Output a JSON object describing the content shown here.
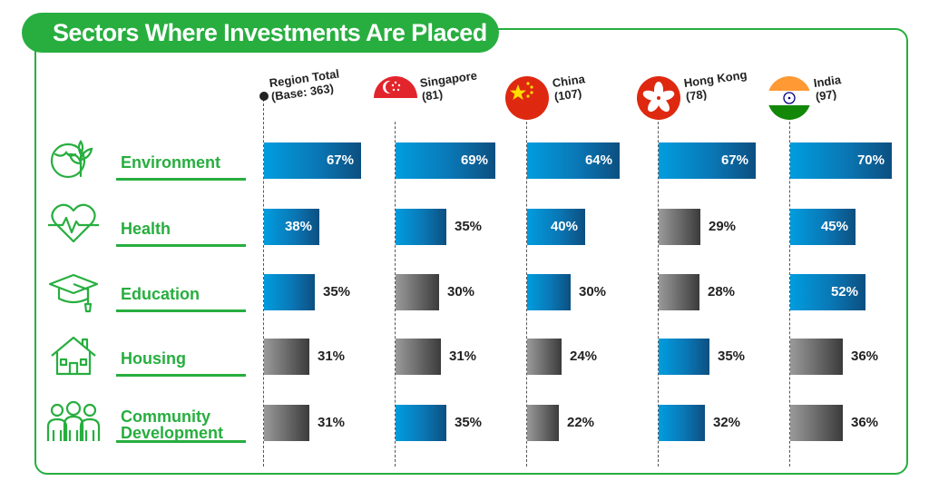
{
  "title": "Sectors Where Investments Are Placed",
  "colors": {
    "accent": "#27ae3f",
    "high": "#0a77b5",
    "low": "#6b6b6b"
  },
  "chart_data": {
    "type": "bar",
    "orientation": "horizontal",
    "title": "Sectors Where Investments Are Placed",
    "unit": "%",
    "categories": [
      "Environment",
      "Health",
      "Education",
      "Housing",
      "Community Development"
    ],
    "category_display": [
      "Environment",
      "Health",
      "Education",
      "Housing",
      "Community\nDevelopment"
    ],
    "xlim": [
      0,
      100
    ],
    "series": [
      {
        "name": "Region Total",
        "base": "(Base: 363)",
        "flag": null,
        "values": [
          67,
          38,
          35,
          31,
          31
        ],
        "shades": [
          "blue",
          "blue",
          "blue",
          "grey",
          "grey"
        ]
      },
      {
        "name": "Singapore",
        "base": "(81)",
        "flag": "singapore",
        "values": [
          69,
          35,
          30,
          31,
          35
        ],
        "shades": [
          "blue",
          "blue",
          "grey",
          "grey",
          "blue"
        ]
      },
      {
        "name": "China",
        "base": "(107)",
        "flag": "china",
        "values": [
          64,
          40,
          30,
          24,
          22
        ],
        "shades": [
          "blue",
          "blue",
          "blue",
          "grey",
          "grey"
        ]
      },
      {
        "name": "Hong Kong",
        "base": "(78)",
        "flag": "hongkong",
        "values": [
          67,
          29,
          28,
          35,
          32
        ],
        "shades": [
          "blue",
          "grey",
          "grey",
          "blue",
          "blue"
        ]
      },
      {
        "name": "India",
        "base": "(97)",
        "flag": "india",
        "values": [
          70,
          45,
          52,
          36,
          36
        ],
        "shades": [
          "blue",
          "blue",
          "blue",
          "grey",
          "grey"
        ]
      }
    ],
    "icons": [
      "environment-icon",
      "health-icon",
      "education-icon",
      "housing-icon",
      "community-icon"
    ]
  }
}
